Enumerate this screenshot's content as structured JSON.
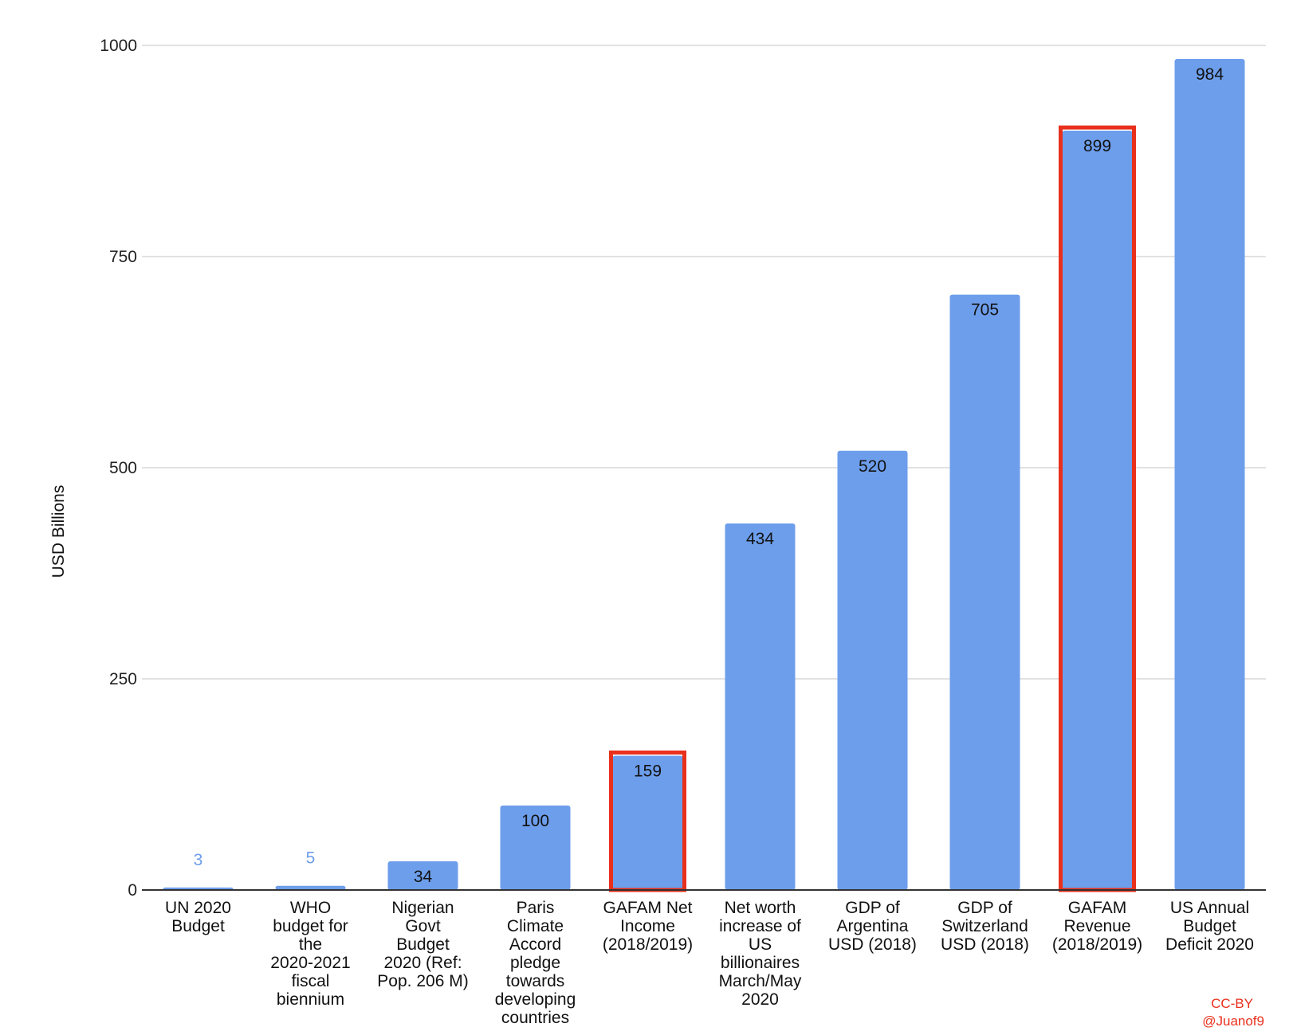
{
  "chart_data": {
    "type": "bar",
    "title": "",
    "xlabel": "",
    "ylabel": "USD Billions",
    "ylim": [
      0,
      1000
    ],
    "yticks": [
      "0",
      "250",
      "500",
      "750",
      "1000"
    ],
    "ytick_values": [
      0,
      250,
      500,
      750,
      1000
    ],
    "grid": true,
    "legend": "none",
    "categories": [
      [
        "UN 2020",
        "Budget"
      ],
      [
        "WHO",
        "budget for",
        "the",
        "2020-2021",
        "fiscal",
        "biennium"
      ],
      [
        "Nigerian",
        "Govt",
        "Budget",
        "2020  (Ref:",
        "Pop. 206 M)"
      ],
      [
        "Paris",
        "Climate",
        "Accord",
        "pledge",
        "towards",
        "developing",
        "countries"
      ],
      [
        "GAFAM Net",
        "Income",
        "(2018/2019)"
      ],
      [
        "Net worth",
        "increase of",
        "US",
        "billionaires",
        "March/May",
        "2020"
      ],
      [
        "GDP of",
        "Argentina",
        "USD (2018)"
      ],
      [
        "GDP of",
        "Switzerland",
        "USD (2018)"
      ],
      [
        "GAFAM",
        "Revenue",
        "(2018/2019)"
      ],
      [
        "US Annual",
        "Budget",
        "Deficit 2020"
      ]
    ],
    "values": [
      3,
      5,
      34,
      100,
      159,
      434,
      520,
      705,
      899,
      984
    ],
    "data_labels": [
      "3",
      "5",
      "34",
      "100",
      "159",
      "434",
      "520",
      "705",
      "899",
      "984"
    ],
    "highlighted": [
      false,
      false,
      false,
      false,
      true,
      false,
      false,
      false,
      true,
      false
    ],
    "colors": {
      "bar": "#6d9eeb",
      "highlight_outline": "#e8301c",
      "grid": "#d9d9d9",
      "baseline": "#333333",
      "label_inside": "#111111",
      "label_outside": "#6d9eeb",
      "credit": "#e8301c"
    }
  },
  "credit": {
    "line1": "CC-BY",
    "line2": "@Juanof9"
  }
}
